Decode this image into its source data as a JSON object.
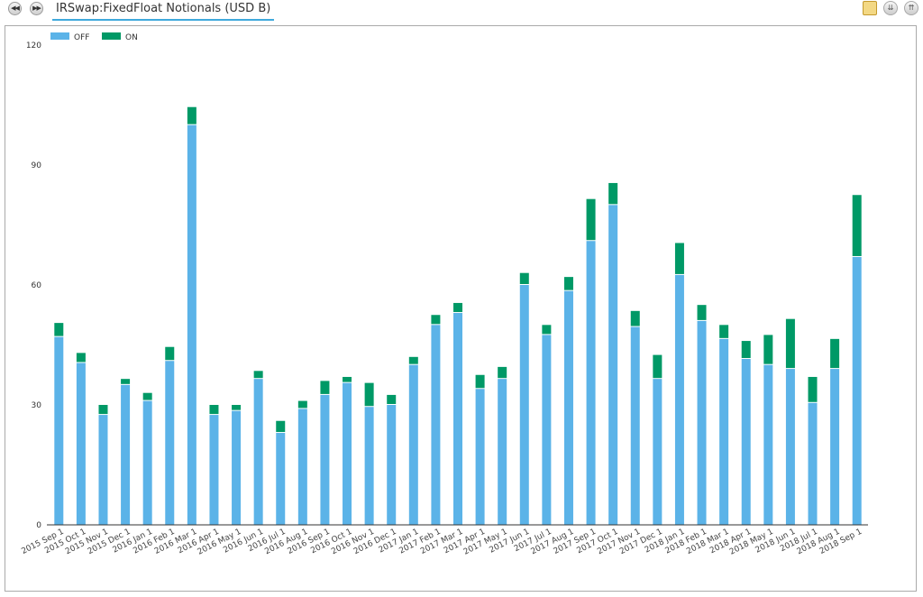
{
  "header": {
    "title": "IRSwap:FixedFloat Notionals (USD B)",
    "back_icon": "rewind-icon",
    "forward_icon": "fast-forward-icon",
    "tools": [
      "notes-icon",
      "collapse-icon",
      "expand-icon"
    ]
  },
  "colors": {
    "off": "#5bb3e8",
    "on": "#009966",
    "accent": "#3fa9dc"
  },
  "chart_data": {
    "type": "bar",
    "stacked": true,
    "title": "",
    "xlabel": "",
    "ylabel": "",
    "ylim": [
      0,
      120
    ],
    "yticks": [
      0,
      30,
      60,
      90,
      120
    ],
    "grid": false,
    "legend_position": "top-left",
    "categories": [
      "2015 Sep 1",
      "2015 Oct 1",
      "2015 Nov 1",
      "2015 Dec 1",
      "2016 Jan 1",
      "2016 Feb 1",
      "2016 Mar 1",
      "2016 Apr 1",
      "2016 May 1",
      "2016 Jun 1",
      "2016 Jul 1",
      "2016 Aug 1",
      "2016 Sep 1",
      "2016 Oct 1",
      "2016 Nov 1",
      "2016 Dec 1",
      "2017 Jan 1",
      "2017 Feb 1",
      "2017 Mar 1",
      "2017 Apr 1",
      "2017 May 1",
      "2017 Jun 1",
      "2017 Jul 1",
      "2017 Aug 1",
      "2017 Sep 1",
      "2017 Oct 1",
      "2017 Nov 1",
      "2017 Dec 1",
      "2018 Jan 1",
      "2018 Feb 1",
      "2018 Mar 1",
      "2018 Apr 1",
      "2018 May 1",
      "2018 Jun 1",
      "2018 Jul 1",
      "2018 Aug 1",
      "2018 Sep 1"
    ],
    "series": [
      {
        "name": "OFF",
        "values": [
          47,
          40.5,
          27.5,
          35,
          31,
          41,
          100,
          27.5,
          28.5,
          36.5,
          23,
          29,
          32.5,
          35.5,
          29.5,
          30,
          40,
          50,
          53,
          34,
          36.5,
          60,
          47.5,
          58.5,
          71,
          80,
          49.5,
          36.5,
          62.5,
          51,
          46.5,
          41.5,
          40,
          39,
          30.5,
          39,
          67
        ]
      },
      {
        "name": "ON",
        "values": [
          3.5,
          2.5,
          2.5,
          1.5,
          2,
          3.5,
          4.5,
          2.5,
          1.5,
          2,
          3,
          2,
          3.5,
          1.5,
          6,
          2.5,
          2,
          2.5,
          2.5,
          3.5,
          3,
          3,
          2.5,
          3.5,
          10.5,
          5.5,
          4,
          6,
          8,
          4,
          3.5,
          4.5,
          7.5,
          12.5,
          6.5,
          7.5,
          15.5
        ]
      }
    ]
  }
}
